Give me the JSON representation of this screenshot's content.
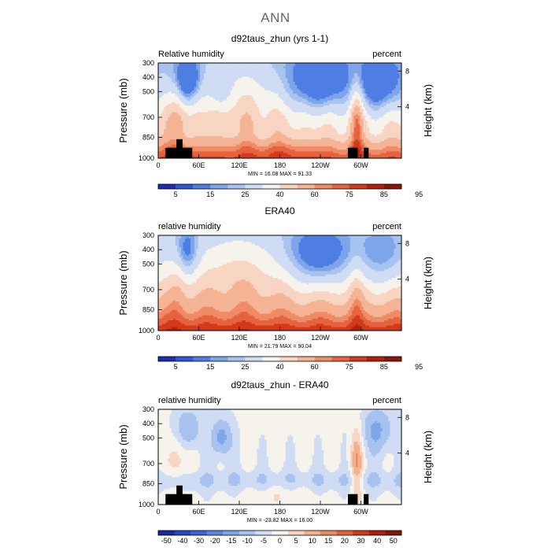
{
  "figure": {
    "title": "ANN"
  },
  "colors": {
    "seq": [
      "#1f2cb0",
      "#3057d8",
      "#4f7ee3",
      "#7ea4ea",
      "#a8c3ef",
      "#cfdcf3",
      "#f6f2ec",
      "#f8d5c2",
      "#f4b495",
      "#ef8b66",
      "#e6633f",
      "#d33a1c",
      "#b2200a",
      "#8a1603"
    ],
    "div": [
      "#1a2a9a",
      "#2545c3",
      "#3764d6",
      "#5888e1",
      "#7ea6ea",
      "#a7c2ef",
      "#cfdcf3",
      "#f6f2ec",
      "#f8d5c2",
      "#f3b08f",
      "#ec8a64",
      "#e2623f",
      "#cc3a1e",
      "#ab200b",
      "#841505"
    ]
  },
  "chart_data": [
    {
      "type": "heatmap",
      "field": "seq",
      "title": "d92taus_zhun (yrs 1-1)",
      "left_label": "Relative humidity",
      "right_label": "percent",
      "ylabel": "Pressure (mb)",
      "y2label": "Height (km)",
      "x_ticks": [
        "0",
        "60E",
        "120E",
        "180",
        "120W",
        "60W"
      ],
      "y_ticks": [
        "300",
        "400",
        "500",
        "700",
        "850",
        "1000"
      ],
      "y2_ticks": [
        "8",
        "4"
      ],
      "min_max": "MIN =   16.08   MAX =   91.33",
      "colorbar_levels": [
        "5",
        "15",
        "25",
        "40",
        "60",
        "75",
        "85",
        "95"
      ],
      "masked": true
    },
    {
      "type": "heatmap",
      "field": "obs",
      "title": "ERA40",
      "left_label": "relative humidity",
      "right_label": "percent",
      "ylabel": "Pressure (mb)",
      "y2label": "Height (km)",
      "x_ticks": [
        "0",
        "60E",
        "120E",
        "180",
        "120W",
        "60W"
      ],
      "y_ticks": [
        "300",
        "400",
        "500",
        "700",
        "850",
        "1000"
      ],
      "y2_ticks": [
        "8",
        "4"
      ],
      "min_max": "MIN =   21.79   MAX =   90.04",
      "colorbar_levels": [
        "5",
        "15",
        "25",
        "40",
        "60",
        "75",
        "85",
        "95"
      ],
      "masked": false
    },
    {
      "type": "heatmap",
      "field": "diff",
      "title": "d92taus_zhun - ERA40",
      "left_label": "relative humidity",
      "right_label": "percent",
      "ylabel": "Pressure (mb)",
      "y2label": "Height (km)",
      "x_ticks": [
        "0",
        "60E",
        "120E",
        "180",
        "120W",
        "60W"
      ],
      "y_ticks": [
        "300",
        "400",
        "500",
        "700",
        "850",
        "1000"
      ],
      "y2_ticks": [
        "8",
        "4"
      ],
      "min_max": "MIN =  -23.82   MAX =   16.00",
      "colorbar_levels": [
        "-50",
        "-40",
        "-30",
        "-20",
        "-15",
        "-10",
        "-5",
        "0",
        "5",
        "10",
        "15",
        "20",
        "30",
        "40",
        "50"
      ],
      "masked": true
    }
  ]
}
